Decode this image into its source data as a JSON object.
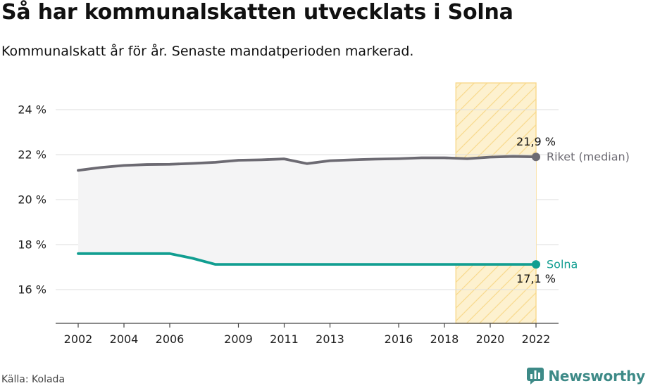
{
  "title": "Så har kommunalskatten utvecklats i Solna",
  "subtitle": "Kommunalskatt år för år. Senaste mandatperioden markerad.",
  "source": "Källa: Kolada",
  "brand": {
    "name": "Newsworthy",
    "logo_icon": "bar-chart-speech-bubble-icon",
    "color": "#3d8a87"
  },
  "colors": {
    "riket": "#6c6a72",
    "solna": "#119e91",
    "highlight_fill": "#fdf1cf",
    "highlight_hatch": "#f8d98c",
    "gap_fill": "#f4f4f5",
    "grid": "#dddddd",
    "axis": "#444444"
  },
  "chart_data": {
    "type": "line",
    "xlim": [
      2002,
      2022
    ],
    "ylim": [
      14.5,
      25.2
    ],
    "y_ticks": [
      {
        "value": 16,
        "label": "16 %"
      },
      {
        "value": 18,
        "label": "18 %"
      },
      {
        "value": 20,
        "label": "20 %"
      },
      {
        "value": 22,
        "label": "22 %"
      },
      {
        "value": 24,
        "label": "24 %"
      }
    ],
    "x_ticks": [
      {
        "value": 2002,
        "label": "2002"
      },
      {
        "value": 2004,
        "label": "2004"
      },
      {
        "value": 2006,
        "label": "2006"
      },
      {
        "value": 2009,
        "label": "2009"
      },
      {
        "value": 2011,
        "label": "2011"
      },
      {
        "value": 2013,
        "label": "2013"
      },
      {
        "value": 2016,
        "label": "2016"
      },
      {
        "value": 2018,
        "label": "2018"
      },
      {
        "value": 2020,
        "label": "2020"
      },
      {
        "value": 2022,
        "label": "2022"
      }
    ],
    "grid": true,
    "highlight_period": [
      2018.5,
      2022
    ],
    "x": [
      2002,
      2003,
      2004,
      2005,
      2006,
      2007,
      2008,
      2009,
      2010,
      2011,
      2012,
      2013,
      2014,
      2015,
      2016,
      2017,
      2018,
      2019,
      2020,
      2021,
      2022
    ],
    "series": [
      {
        "name": "Riket (median)",
        "values": [
          21.3,
          21.43,
          21.52,
          21.56,
          21.57,
          21.61,
          21.66,
          21.75,
          21.77,
          21.81,
          21.6,
          21.73,
          21.77,
          21.8,
          21.82,
          21.86,
          21.86,
          21.82,
          21.89,
          21.92,
          21.9
        ],
        "end_label": "21,9 %"
      },
      {
        "name": "Solna",
        "values": [
          17.6,
          17.6,
          17.6,
          17.6,
          17.6,
          17.39,
          17.12,
          17.12,
          17.12,
          17.12,
          17.12,
          17.12,
          17.12,
          17.12,
          17.12,
          17.12,
          17.12,
          17.12,
          17.12,
          17.12,
          17.12
        ],
        "end_label": "17,1 %"
      }
    ]
  }
}
